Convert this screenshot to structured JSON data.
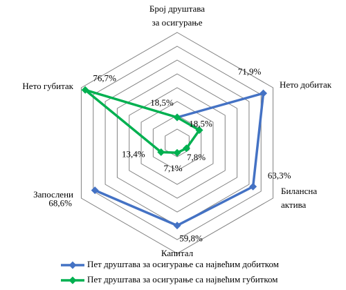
{
  "chart_data": {
    "type": "radar",
    "categories": [
      "Број друштава\nза осигурање",
      "Нето добитак",
      "Билансна\nактива",
      "Капитал",
      "Запослени",
      "Нето губитак"
    ],
    "series": [
      {
        "name": "Пет друштава за осигурање са највећим добитком",
        "color": "#4472c4",
        "values": [
          18.5,
          71.9,
          63.3,
          59.8,
          68.6,
          null
        ],
        "value_labels": [
          null,
          "71,9%",
          "63,3%",
          "59,8%",
          "68,6%",
          null
        ]
      },
      {
        "name": "Пет друштава за осигурање са највећим губитком",
        "color": "#00b050",
        "values": [
          18.5,
          18.5,
          7.8,
          7.1,
          13.4,
          76.7
        ],
        "value_labels": [
          "18,5%",
          "18,5%",
          "7,8%",
          "7,1%",
          "13,4%",
          "76,7%"
        ]
      }
    ],
    "ylim": [
      0,
      80
    ],
    "yticks": [
      0,
      10,
      20,
      30,
      40,
      50,
      60,
      70,
      80
    ],
    "grid": true
  }
}
